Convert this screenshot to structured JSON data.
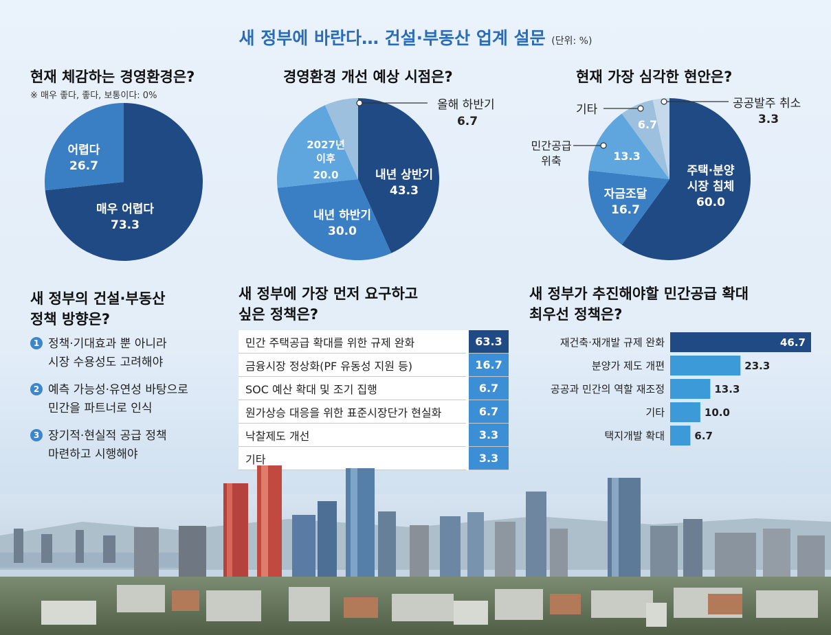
{
  "title": "새 정부에 바란다… 건설·부동산 업계 설문",
  "unit": "(단위: %)",
  "pie1": {
    "heading": "현재 체감하는 경영환경은?",
    "note": "※ 매우 좋다, 좋다, 보통이다: 0%",
    "slices": [
      {
        "label": "매우 어렵다",
        "value": "73.3",
        "color": "#1f4a84"
      },
      {
        "label": "어렵다",
        "value": "26.7",
        "color": "#3a7ec4"
      }
    ]
  },
  "pie2": {
    "heading": "경영환경 개선 예상 시점은?",
    "slices": [
      {
        "label": "내년 상반기",
        "value": "43.3",
        "color": "#1f4a84"
      },
      {
        "label": "내년 하반기",
        "value": "30.0",
        "color": "#3a7ec4"
      },
      {
        "label": "2027년 이후",
        "value": "20.0",
        "color": "#5fa5de"
      },
      {
        "label": "올해 하반기",
        "value": "6.7",
        "color": "#9cc0dd"
      }
    ]
  },
  "pie3": {
    "heading": "현재 가장 심각한 현안은?",
    "slices": [
      {
        "label": "주택·분양 시장 침체",
        "value": "60.0",
        "color": "#1f4a84"
      },
      {
        "label": "자금조달",
        "value": "16.7",
        "color": "#3a7ec4"
      },
      {
        "label": "민간공급 위축",
        "value": "13.3",
        "color": "#5fa5de"
      },
      {
        "label": "기타",
        "value": "6.7",
        "color": "#9cc0dd"
      },
      {
        "label": "공공발주 취소",
        "value": "3.3",
        "color": "#c6d9ea"
      }
    ]
  },
  "policy": {
    "heading_line1": "새 정부의 건설·부동산",
    "heading_line2": "정책 방향은?",
    "items": [
      {
        "num": "1",
        "text": "정책·기대효과 뿐 아니라\n시장 수용성도 고려해야"
      },
      {
        "num": "2",
        "text": "예측 가능성·유연성 바탕으로\n민간을 파트너로 인식"
      },
      {
        "num": "3",
        "text": "장기적·현실적 공급 정책\n마련하고 시행해야"
      }
    ]
  },
  "table": {
    "heading_line1": "새 정부에 가장 먼저 요구하고",
    "heading_line2": "싶은 정책은?",
    "rows": [
      {
        "label": "민간 주택공급 확대를 위한 규제 완화",
        "value": "63.3"
      },
      {
        "label": "금융시장 정상화(PF 유동성 지원 등)",
        "value": "16.7"
      },
      {
        "label": "SOC 예산 확대 및 조기 집행",
        "value": "6.7"
      },
      {
        "label": "원가상승 대응을 위한 표준시장단가 현실화",
        "value": "6.7"
      },
      {
        "label": "낙찰제도 개선",
        "value": "3.3"
      },
      {
        "label": "기타",
        "value": "3.3"
      }
    ]
  },
  "bars": {
    "heading_line1": "새 정부가 추진해야할 민간공급 확대",
    "heading_line2": "최우선 정책은?",
    "color_top": "#1f4a84",
    "color_rest": "#3c9ad9"
  },
  "chart_data": [
    {
      "type": "pie",
      "title": "현재 체감하는 경영환경은?",
      "categories": [
        "매우 어렵다",
        "어렵다"
      ],
      "values": [
        73.3,
        26.7
      ]
    },
    {
      "type": "pie",
      "title": "경영환경 개선 예상 시점은?",
      "categories": [
        "내년 상반기",
        "내년 하반기",
        "2027년 이후",
        "올해 하반기"
      ],
      "values": [
        43.3,
        30.0,
        20.0,
        6.7
      ]
    },
    {
      "type": "pie",
      "title": "현재 가장 심각한 현안은?",
      "categories": [
        "주택·분양 시장 침체",
        "자금조달",
        "민간공급 위축",
        "기타",
        "공공발주 취소"
      ],
      "values": [
        60.0,
        16.7,
        13.3,
        6.7,
        3.3
      ]
    },
    {
      "type": "table",
      "title": "새 정부에 가장 먼저 요구하고 싶은 정책은?",
      "categories": [
        "민간 주택공급 확대를 위한 규제 완화",
        "금융시장 정상화(PF 유동성 지원 등)",
        "SOC 예산 확대 및 조기 집행",
        "원가상승 대응을 위한 표준시장단가 현실화",
        "낙찰제도 개선",
        "기타"
      ],
      "values": [
        63.3,
        16.7,
        6.7,
        6.7,
        3.3,
        3.3
      ]
    },
    {
      "type": "bar",
      "title": "새 정부가 추진해야할 민간공급 확대 최우선 정책은?",
      "categories": [
        "재건축·재개발 규제 완화",
        "분양가 제도 개편",
        "공공과 민간의 역할 재조정",
        "기타",
        "택지개발 확대"
      ],
      "values": [
        46.7,
        23.3,
        13.3,
        10.0,
        6.7
      ],
      "xlim": [
        0,
        46.7
      ]
    }
  ]
}
